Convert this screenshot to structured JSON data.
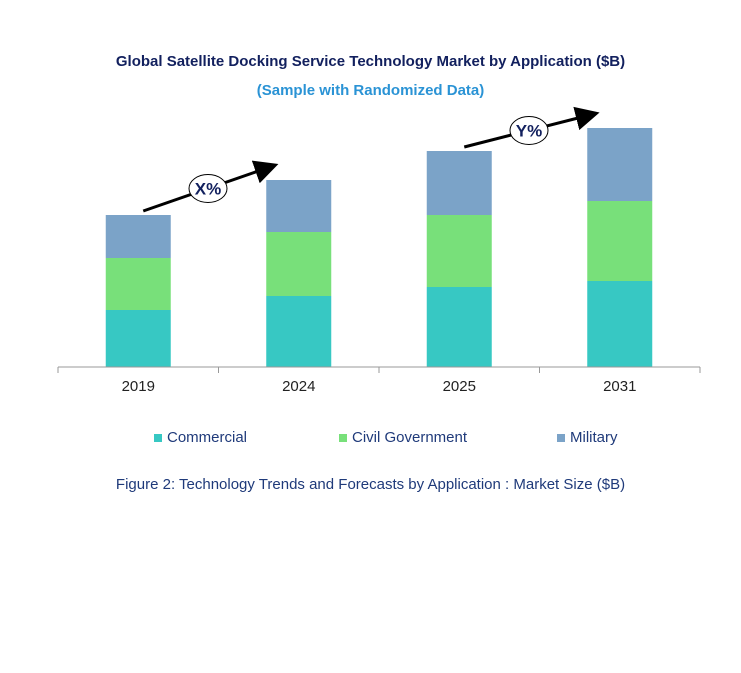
{
  "chart_data": {
    "type": "bar",
    "stacked": true,
    "title": "Global Satellite Docking Service Technology Market by Application ($B)",
    "subtitle": "(Sample with Randomized Data)",
    "caption": "Figure 2: Technology  Trends  and Forecasts by Application : Market Size ($B)",
    "categories": [
      "2019",
      "2024",
      "2025",
      "2031"
    ],
    "series": [
      {
        "name": "Commercial",
        "color": "#37C8C3",
        "values": [
          57,
          71,
          80,
          86
        ]
      },
      {
        "name": "Civil Government",
        "color": "#78E07A",
        "values": [
          52,
          64,
          72,
          80
        ]
      },
      {
        "name": "Military",
        "color": "#7BA3C8",
        "values": [
          43,
          52,
          64,
          73
        ]
      }
    ],
    "ylim": [
      0,
      250
    ],
    "grid": false,
    "legend_position": "bottom",
    "annotations": [
      {
        "label": "X%",
        "from": "2019",
        "to": "2024"
      },
      {
        "label": "Y%",
        "from": "2025",
        "to": "2031"
      }
    ]
  }
}
